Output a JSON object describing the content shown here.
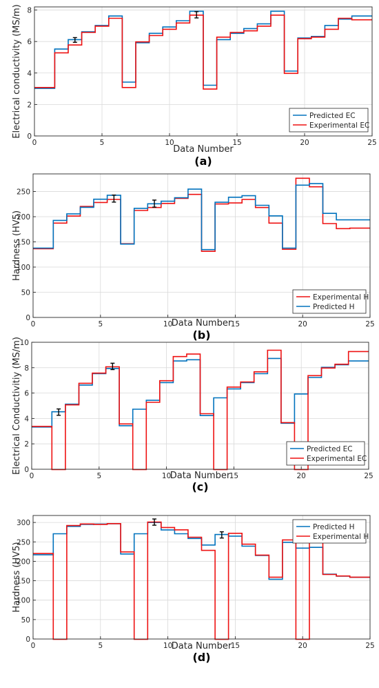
{
  "colors": {
    "predicted": "#0072BD",
    "experimental": "#EE1111",
    "axis": "#262626",
    "grid": "#d9d9d9",
    "errorbar": "#000000"
  },
  "chart_data": [
    {
      "type": "line",
      "panel_label": "(a)",
      "xlabel": "Data Number",
      "ylabel": "Electrical conductivity (MS/m)",
      "xlim": [
        0,
        25
      ],
      "ylim": [
        0,
        8.2
      ],
      "xticks": [
        0,
        5,
        10,
        15,
        20,
        25
      ],
      "yticks": [
        0,
        2,
        4,
        6,
        8
      ],
      "grid": true,
      "legend_position": "lower-right",
      "series": [
        {
          "name": "Predicted EC",
          "color_key": "predicted",
          "y": [
            3.0,
            5.5,
            6.1,
            6.6,
            7.0,
            7.6,
            3.4,
            5.9,
            6.5,
            6.9,
            7.3,
            7.9,
            3.2,
            6.1,
            6.5,
            6.8,
            7.1,
            7.9,
            4.1,
            6.2,
            6.3,
            7.0,
            7.4,
            7.6
          ]
        },
        {
          "name": "Experimental EC",
          "color_key": "experimental",
          "y": [
            3.1,
            5.3,
            5.8,
            6.6,
            7.0,
            7.5,
            3.1,
            6.0,
            6.4,
            6.8,
            7.2,
            7.7,
            3.0,
            6.3,
            6.6,
            6.7,
            7.0,
            7.7,
            4.0,
            6.2,
            6.3,
            6.8,
            7.5,
            7.4
          ]
        }
      ],
      "error_bars": [
        {
          "x": 3,
          "y": 6.1,
          "err": 0.15
        },
        {
          "x": 12,
          "y": 7.7,
          "err": 0.2
        }
      ]
    },
    {
      "type": "line",
      "panel_label": "(b)",
      "xlabel": "Data Number",
      "ylabel": "Hardness (HV5)",
      "xlim": [
        0,
        25
      ],
      "ylim": [
        0,
        285
      ],
      "xticks": [
        0,
        5,
        10,
        15,
        20,
        25
      ],
      "yticks": [
        0,
        50,
        100,
        150,
        200,
        250
      ],
      "grid": true,
      "legend_position": "lower-right",
      "series": [
        {
          "name": "Experimental H",
          "color_key": "experimental",
          "y": [
            137,
            188,
            202,
            221,
            229,
            235,
            147,
            213,
            219,
            227,
            237,
            245,
            132,
            226,
            228,
            235,
            219,
            188,
            136,
            277,
            260,
            187,
            177,
            178
          ]
        },
        {
          "name": "Predicted H",
          "color_key": "predicted",
          "y": [
            137,
            192,
            205,
            218,
            234,
            242,
            145,
            216,
            225,
            230,
            237,
            254,
            134,
            228,
            238,
            241,
            222,
            201,
            137,
            262,
            265,
            206,
            193,
            193
          ]
        }
      ],
      "error_bars": [
        {
          "x": 6,
          "y": 236,
          "err": 7
        },
        {
          "x": 9,
          "y": 226,
          "err": 7
        }
      ]
    },
    {
      "type": "line",
      "panel_label": "(c)",
      "xlabel": "Data Number",
      "ylabel": "Electrical Conductivitiy (MS/m)",
      "xlim": [
        0,
        25
      ],
      "ylim": [
        0,
        10
      ],
      "xticks": [
        0,
        5,
        10,
        15,
        20,
        25
      ],
      "yticks": [
        0,
        2,
        4,
        6,
        8,
        10
      ],
      "grid": true,
      "legend_position": "lower-right",
      "series": [
        {
          "name": "Predicted EC",
          "color_key": "predicted",
          "y": [
            3.3,
            4.5,
            5.1,
            6.6,
            7.5,
            7.9,
            3.4,
            4.7,
            5.4,
            6.8,
            8.5,
            8.6,
            4.2,
            5.6,
            6.3,
            6.8,
            7.5,
            8.7,
            3.6,
            5.9,
            7.2,
            8.0,
            8.2,
            8.5
          ]
        },
        {
          "name": "Experimental EC",
          "color_key": "experimental",
          "y": [
            3.4,
            0.0,
            5.1,
            6.8,
            7.6,
            8.1,
            3.6,
            0.0,
            5.3,
            7.0,
            8.9,
            9.1,
            4.4,
            0.0,
            6.5,
            6.9,
            7.7,
            9.4,
            3.7,
            0.0,
            7.4,
            8.0,
            8.3,
            9.3
          ]
        }
      ],
      "error_bars": [
        {
          "x": 2,
          "y": 4.5,
          "err": 0.25
        },
        {
          "x": 6,
          "y": 8.1,
          "err": 0.25
        }
      ]
    },
    {
      "type": "line",
      "panel_label": "(d)",
      "xlabel": "Data Number",
      "ylabel": "Hardness (HV5)",
      "xlim": [
        0,
        25
      ],
      "ylim": [
        0,
        318
      ],
      "xticks": [
        0,
        5,
        10,
        15,
        20,
        25
      ],
      "yticks": [
        0,
        50,
        100,
        150,
        200,
        250,
        300
      ],
      "grid": true,
      "legend_position": "top-right",
      "series": [
        {
          "name": "Predicted H",
          "color_key": "predicted",
          "y": [
            216,
            270,
            289,
            294,
            295,
            296,
            218,
            270,
            299,
            280,
            270,
            258,
            241,
            268,
            264,
            238,
            214,
            153,
            248,
            233,
            235,
            166,
            161,
            158
          ]
        },
        {
          "name": "Experimental H",
          "color_key": "experimental",
          "y": [
            221,
            0,
            293,
            297,
            296,
            298,
            225,
            0,
            302,
            288,
            282,
            263,
            229,
            0,
            273,
            245,
            217,
            160,
            256,
            0,
            251,
            167,
            163,
            160
          ]
        }
      ],
      "error_bars": [
        {
          "x": 9,
          "y": 301,
          "err": 8
        },
        {
          "x": 14,
          "y": 268,
          "err": 8
        }
      ]
    }
  ]
}
